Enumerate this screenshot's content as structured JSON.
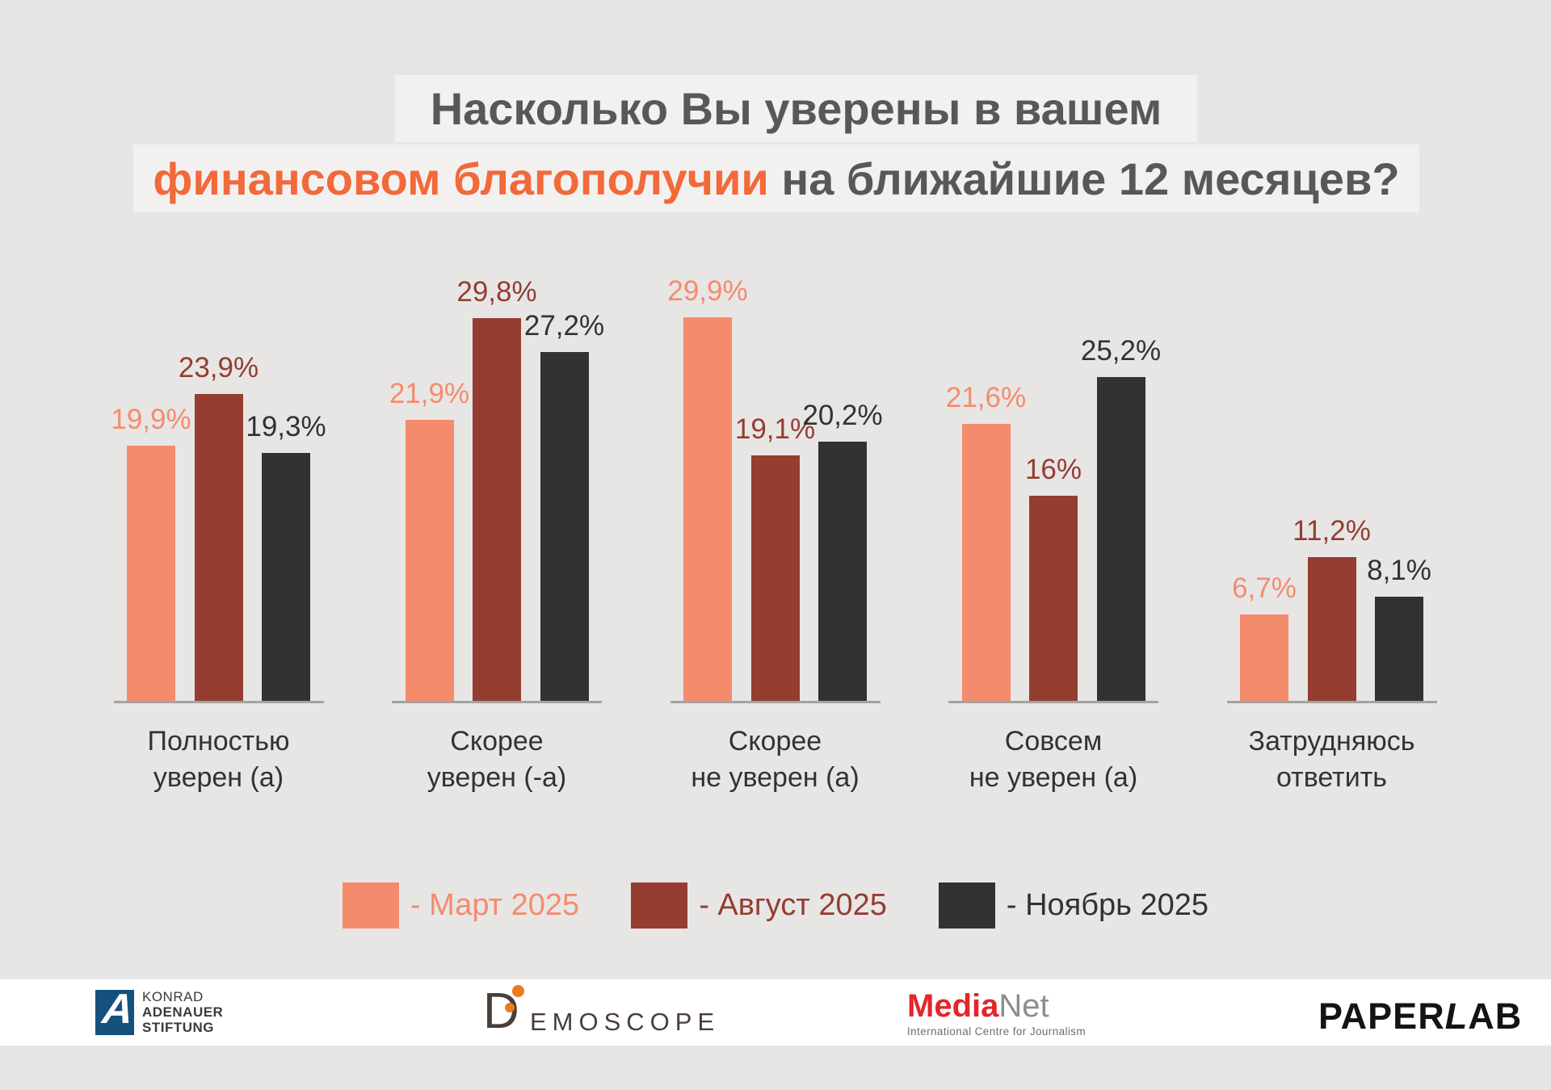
{
  "title": {
    "line1": "Насколько Вы уверены в вашем",
    "line2_highlight": "финансовом благополучии",
    "line2_rest": " на ближайшие 12 месяцев?"
  },
  "chart_data": {
    "type": "bar",
    "title": "Насколько Вы уверены в вашем финансовом благополучии на ближайшие 12 месяцев?",
    "categories": [
      "Полностью\nуверен (а)",
      "Скорее\nуверен (-а)",
      "Скорее\nне уверен (а)",
      "Совсем\nне уверен (а)",
      "Затрудняюсь\nответить"
    ],
    "series": [
      {
        "name": "Март 2025",
        "color": "#f58b6d",
        "values": [
          19.9,
          21.9,
          29.9,
          21.6,
          6.7
        ],
        "labels": [
          "19,9%",
          "21,9%",
          "29,9%",
          "21,6%",
          "6,7%"
        ]
      },
      {
        "name": "Август 2025",
        "color": "#943d30",
        "values": [
          23.9,
          29.8,
          19.1,
          16,
          11.2
        ],
        "labels": [
          "23,9%",
          "29,8%",
          "19,1%",
          "16%",
          "11,2%"
        ]
      },
      {
        "name": "Ноябрь 2025",
        "color": "#343132",
        "values": [
          19.3,
          27.2,
          20.2,
          25.2,
          8.1
        ],
        "labels": [
          "19,3%",
          "27,2%",
          "20,2%",
          "25,2%",
          "8,1%"
        ]
      }
    ],
    "ylim": [
      0,
      30
    ],
    "grid": false,
    "value_labels": true,
    "legend_position": "bottom"
  },
  "legend": {
    "items": [
      {
        "label": "- Март 2025",
        "color": "#f58b6d"
      },
      {
        "label": "- Август 2025",
        "color": "#943d30"
      },
      {
        "label": "- Ноябрь 2025",
        "color": "#343132"
      }
    ]
  },
  "footer": {
    "kas": {
      "line1": "KONRAD",
      "line2": "ADENAUER",
      "line3": "STIFTUNG",
      "emblem_letter": "A",
      "emblem_color": "#15517e"
    },
    "demoscope": {
      "d": "D",
      "text": "EMOSCOPE",
      "dot_color": "#ef7c1a"
    },
    "medianet": {
      "part1": "Media",
      "part2": "Net",
      "subtitle": "International Centre for Journalism"
    },
    "paperlab": {
      "part1": "PAPER",
      "part2": "L",
      "part3": "AB"
    }
  },
  "colors": {
    "background": "#e7e6e5",
    "title_band": "#f2f1f0",
    "title_text": "#595757",
    "accent_orange": "#f2693a",
    "axis_line": "#a4a3a2",
    "footer_background": "#ffffff"
  }
}
